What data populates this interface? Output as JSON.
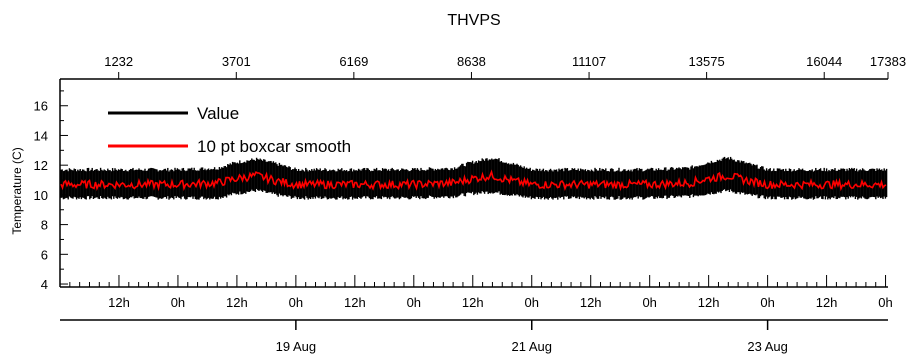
{
  "chart_data": {
    "type": "line",
    "title": "THVPS",
    "ylabel": "Temperature (C)",
    "xlabel": "",
    "ylim": [
      3.8,
      17.8
    ],
    "y_ticks": [
      4,
      6,
      8,
      10,
      12,
      14,
      16
    ],
    "x_range_hours": [
      0,
      168.5
    ],
    "top_axis": {
      "label": "",
      "ticks": [
        1232,
        3701,
        6169,
        8638,
        11107,
        13575,
        16044,
        17383
      ]
    },
    "bottom_axis_time_ticks": [
      "12h",
      "0h",
      "12h",
      "0h",
      "12h",
      "0h",
      "12h",
      "0h",
      "12h",
      "0h",
      "12h",
      "0h",
      "12h",
      "0h"
    ],
    "bottom_axis_date_ticks": [
      "19 Aug",
      "21 Aug",
      "23 Aug"
    ],
    "legend": {
      "position": "top-left",
      "entries": [
        "Value",
        "10 pt boxcar smooth"
      ]
    },
    "series": [
      {
        "name": "Value",
        "color": "#000000",
        "band": true,
        "x_hours": [
          0,
          8,
          16,
          24,
          32,
          36,
          40,
          44,
          48,
          56,
          64,
          72,
          80,
          84,
          88,
          92,
          96,
          104,
          112,
          120,
          128,
          132,
          136,
          140,
          144,
          152,
          160,
          168
        ],
        "y_min": [
          9.8,
          9.8,
          9.8,
          9.8,
          9.8,
          10.1,
          10.3,
          10.0,
          9.8,
          9.8,
          9.8,
          9.8,
          9.9,
          10.1,
          10.2,
          10.0,
          9.8,
          9.8,
          9.8,
          9.8,
          9.9,
          10.1,
          10.3,
          10.0,
          9.8,
          9.8,
          9.8,
          9.8
        ],
        "y_max": [
          11.7,
          11.7,
          11.7,
          11.7,
          11.8,
          12.2,
          12.4,
          12.1,
          11.7,
          11.7,
          11.7,
          11.7,
          11.8,
          12.2,
          12.5,
          12.1,
          11.7,
          11.7,
          11.7,
          11.7,
          11.8,
          12.2,
          12.5,
          12.1,
          11.7,
          11.7,
          11.7,
          11.7
        ]
      },
      {
        "name": "10 pt boxcar smooth",
        "color": "#ff0000",
        "x_hours": [
          0,
          8,
          16,
          24,
          32,
          36,
          40,
          44,
          48,
          56,
          64,
          72,
          80,
          84,
          88,
          92,
          96,
          104,
          112,
          120,
          128,
          132,
          136,
          140,
          144,
          152,
          160,
          168
        ],
        "y": [
          10.7,
          10.7,
          10.7,
          10.7,
          10.8,
          11.1,
          11.3,
          10.95,
          10.7,
          10.7,
          10.7,
          10.7,
          10.8,
          11.1,
          11.3,
          10.95,
          10.7,
          10.7,
          10.7,
          10.7,
          10.8,
          11.1,
          11.3,
          10.95,
          10.7,
          10.7,
          10.7,
          10.7
        ]
      }
    ]
  }
}
